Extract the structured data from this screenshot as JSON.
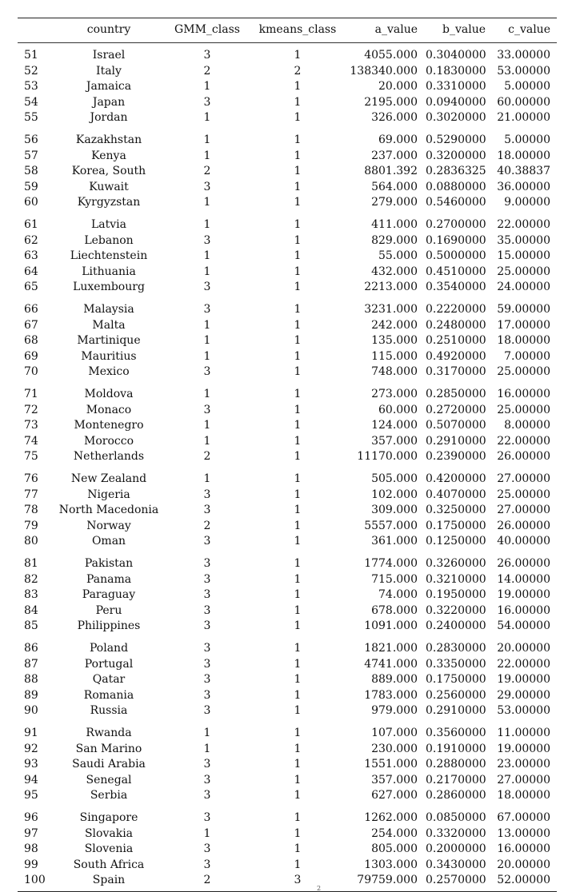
{
  "table": {
    "columns": [
      "",
      "country",
      "GMM_class",
      "kmeans_class",
      "a_value",
      "b_value",
      "c_value"
    ],
    "groups": [
      [
        [
          "51",
          "Israel",
          "3",
          "1",
          "4055.000",
          "0.3040000",
          "33.00000"
        ],
        [
          "52",
          "Italy",
          "2",
          "2",
          "138340.000",
          "0.1830000",
          "53.00000"
        ],
        [
          "53",
          "Jamaica",
          "1",
          "1",
          "20.000",
          "0.3310000",
          "5.00000"
        ],
        [
          "54",
          "Japan",
          "3",
          "1",
          "2195.000",
          "0.0940000",
          "60.00000"
        ],
        [
          "55",
          "Jordan",
          "1",
          "1",
          "326.000",
          "0.3020000",
          "21.00000"
        ]
      ],
      [
        [
          "56",
          "Kazakhstan",
          "1",
          "1",
          "69.000",
          "0.5290000",
          "5.00000"
        ],
        [
          "57",
          "Kenya",
          "1",
          "1",
          "237.000",
          "0.3200000",
          "18.00000"
        ],
        [
          "58",
          "Korea, South",
          "2",
          "1",
          "8801.392",
          "0.2836325",
          "40.38837"
        ],
        [
          "59",
          "Kuwait",
          "3",
          "1",
          "564.000",
          "0.0880000",
          "36.00000"
        ],
        [
          "60",
          "Kyrgyzstan",
          "1",
          "1",
          "279.000",
          "0.5460000",
          "9.00000"
        ]
      ],
      [
        [
          "61",
          "Latvia",
          "1",
          "1",
          "411.000",
          "0.2700000",
          "22.00000"
        ],
        [
          "62",
          "Lebanon",
          "3",
          "1",
          "829.000",
          "0.1690000",
          "35.00000"
        ],
        [
          "63",
          "Liechtenstein",
          "1",
          "1",
          "55.000",
          "0.5000000",
          "15.00000"
        ],
        [
          "64",
          "Lithuania",
          "1",
          "1",
          "432.000",
          "0.4510000",
          "25.00000"
        ],
        [
          "65",
          "Luxembourg",
          "3",
          "1",
          "2213.000",
          "0.3540000",
          "24.00000"
        ]
      ],
      [
        [
          "66",
          "Malaysia",
          "3",
          "1",
          "3231.000",
          "0.2220000",
          "59.00000"
        ],
        [
          "67",
          "Malta",
          "1",
          "1",
          "242.000",
          "0.2480000",
          "17.00000"
        ],
        [
          "68",
          "Martinique",
          "1",
          "1",
          "135.000",
          "0.2510000",
          "18.00000"
        ],
        [
          "69",
          "Mauritius",
          "1",
          "1",
          "115.000",
          "0.4920000",
          "7.00000"
        ],
        [
          "70",
          "Mexico",
          "3",
          "1",
          "748.000",
          "0.3170000",
          "25.00000"
        ]
      ],
      [
        [
          "71",
          "Moldova",
          "1",
          "1",
          "273.000",
          "0.2850000",
          "16.00000"
        ],
        [
          "72",
          "Monaco",
          "3",
          "1",
          "60.000",
          "0.2720000",
          "25.00000"
        ],
        [
          "73",
          "Montenegro",
          "1",
          "1",
          "124.000",
          "0.5070000",
          "8.00000"
        ],
        [
          "74",
          "Morocco",
          "1",
          "1",
          "357.000",
          "0.2910000",
          "22.00000"
        ],
        [
          "75",
          "Netherlands",
          "2",
          "1",
          "11170.000",
          "0.2390000",
          "26.00000"
        ]
      ],
      [
        [
          "76",
          "New Zealand",
          "1",
          "1",
          "505.000",
          "0.4200000",
          "27.00000"
        ],
        [
          "77",
          "Nigeria",
          "3",
          "1",
          "102.000",
          "0.4070000",
          "25.00000"
        ],
        [
          "78",
          "North Macedonia",
          "3",
          "1",
          "309.000",
          "0.3250000",
          "27.00000"
        ],
        [
          "79",
          "Norway",
          "2",
          "1",
          "5557.000",
          "0.1750000",
          "26.00000"
        ],
        [
          "80",
          "Oman",
          "3",
          "1",
          "361.000",
          "0.1250000",
          "40.00000"
        ]
      ],
      [
        [
          "81",
          "Pakistan",
          "3",
          "1",
          "1774.000",
          "0.3260000",
          "26.00000"
        ],
        [
          "82",
          "Panama",
          "3",
          "1",
          "715.000",
          "0.3210000",
          "14.00000"
        ],
        [
          "83",
          "Paraguay",
          "3",
          "1",
          "74.000",
          "0.1950000",
          "19.00000"
        ],
        [
          "84",
          "Peru",
          "3",
          "1",
          "678.000",
          "0.3220000",
          "16.00000"
        ],
        [
          "85",
          "Philippines",
          "3",
          "1",
          "1091.000",
          "0.2400000",
          "54.00000"
        ]
      ],
      [
        [
          "86",
          "Poland",
          "3",
          "1",
          "1821.000",
          "0.2830000",
          "20.00000"
        ],
        [
          "87",
          "Portugal",
          "3",
          "1",
          "4741.000",
          "0.3350000",
          "22.00000"
        ],
        [
          "88",
          "Qatar",
          "3",
          "1",
          "889.000",
          "0.1750000",
          "19.00000"
        ],
        [
          "89",
          "Romania",
          "3",
          "1",
          "1783.000",
          "0.2560000",
          "29.00000"
        ],
        [
          "90",
          "Russia",
          "3",
          "1",
          "979.000",
          "0.2910000",
          "53.00000"
        ]
      ],
      [
        [
          "91",
          "Rwanda",
          "1",
          "1",
          "107.000",
          "0.3560000",
          "11.00000"
        ],
        [
          "92",
          "San Marino",
          "1",
          "1",
          "230.000",
          "0.1910000",
          "19.00000"
        ],
        [
          "93",
          "Saudi Arabia",
          "3",
          "1",
          "1551.000",
          "0.2880000",
          "23.00000"
        ],
        [
          "94",
          "Senegal",
          "3",
          "1",
          "357.000",
          "0.2170000",
          "27.00000"
        ],
        [
          "95",
          "Serbia",
          "3",
          "1",
          "627.000",
          "0.2860000",
          "18.00000"
        ]
      ],
      [
        [
          "96",
          "Singapore",
          "3",
          "1",
          "1262.000",
          "0.0850000",
          "67.00000"
        ],
        [
          "97",
          "Slovakia",
          "1",
          "1",
          "254.000",
          "0.3320000",
          "13.00000"
        ],
        [
          "98",
          "Slovenia",
          "3",
          "1",
          "805.000",
          "0.2000000",
          "16.00000"
        ],
        [
          "99",
          "South Africa",
          "3",
          "1",
          "1303.000",
          "0.3430000",
          "20.00000"
        ],
        [
          "100",
          "Spain",
          "2",
          "3",
          "79759.000",
          "0.2570000",
          "52.00000"
        ]
      ]
    ]
  },
  "footnote_mark": "2"
}
